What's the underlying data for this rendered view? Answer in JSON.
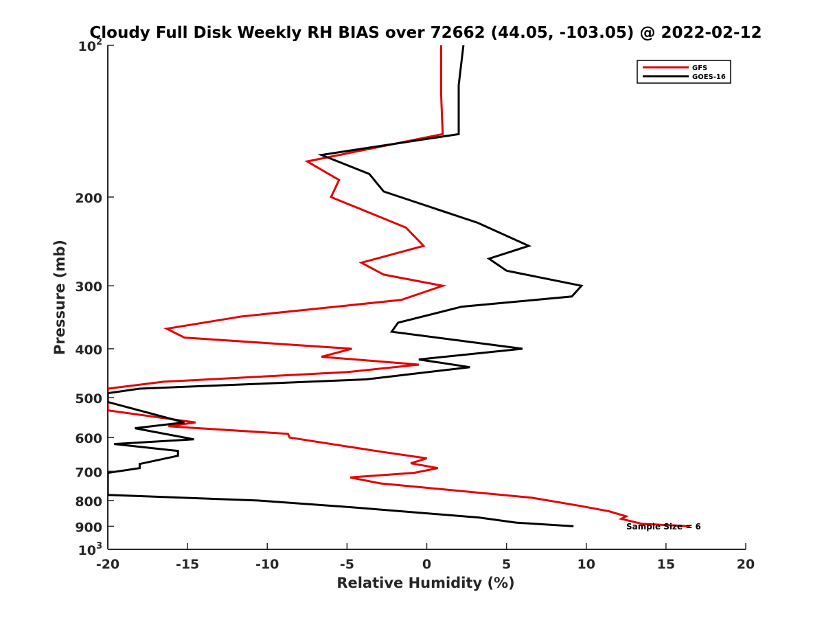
{
  "chart_data": {
    "type": "line",
    "title": "Cloudy Full Disk Weekly RH BIAS over 72662 (44.05, -103.05) @ 2022-02-12",
    "xlabel": "Relative Humidity (%)",
    "ylabel": "Pressure (mb)",
    "xlim": [
      -20,
      20
    ],
    "ylim": [
      100,
      1000
    ],
    "y_scale": "log",
    "y_reversed": true,
    "grid": false,
    "legend_position": "top-right",
    "x_ticks": [
      -20,
      -15,
      -10,
      -5,
      0,
      5,
      10,
      15,
      20
    ],
    "x_tick_labels": [
      "-20",
      "-15",
      "-10",
      "-5",
      "0",
      "5",
      "10",
      "15",
      "20"
    ],
    "y_ticks": [
      100,
      200,
      300,
      400,
      500,
      600,
      700,
      800,
      900,
      1000
    ],
    "y_tick_labels": [
      {
        "base": "10",
        "exp": "2"
      },
      {
        "base": "200",
        "exp": ""
      },
      {
        "base": "300",
        "exp": ""
      },
      {
        "base": "400",
        "exp": ""
      },
      {
        "base": "500",
        "exp": ""
      },
      {
        "base": "600",
        "exp": ""
      },
      {
        "base": "700",
        "exp": ""
      },
      {
        "base": "800",
        "exp": ""
      },
      {
        "base": "900",
        "exp": ""
      },
      {
        "base": "10",
        "exp": "3"
      }
    ],
    "annotation": "Sample Size = 6",
    "series": [
      {
        "name": "GFS",
        "color": "#e60000",
        "points": [
          [
            0.9,
            100
          ],
          [
            0.9,
            125
          ],
          [
            1.0,
            150
          ],
          [
            -7.5,
            170
          ],
          [
            -5.5,
            185
          ],
          [
            -6.0,
            200
          ],
          [
            -1.3,
            230
          ],
          [
            -0.2,
            250
          ],
          [
            -4.1,
            270
          ],
          [
            -2.7,
            285
          ],
          [
            1.0,
            300
          ],
          [
            -1.6,
            320
          ],
          [
            -11.6,
            345
          ],
          [
            -16.3,
            365
          ],
          [
            -15.2,
            380
          ],
          [
            -4.7,
            400
          ],
          [
            -6.6,
            415
          ],
          [
            -0.5,
            430
          ],
          [
            -5.0,
            445
          ],
          [
            -16.5,
            465
          ],
          [
            -20.0,
            480
          ],
          [
            -20.0,
            530
          ],
          [
            -14.5,
            560
          ],
          [
            -16.2,
            570
          ],
          [
            -8.7,
            590
          ],
          [
            -8.6,
            600
          ],
          [
            -2.9,
            640
          ],
          [
            0.0,
            660
          ],
          [
            -1.0,
            675
          ],
          [
            0.7,
            690
          ],
          [
            -0.8,
            705
          ],
          [
            -4.8,
            720
          ],
          [
            -2.9,
            740
          ],
          [
            6.6,
            790
          ],
          [
            9.6,
            820
          ],
          [
            11.4,
            840
          ],
          [
            12.5,
            860
          ],
          [
            12.2,
            870
          ],
          [
            13.5,
            890
          ],
          [
            16.5,
            900
          ]
        ]
      },
      {
        "name": "GOES-16",
        "color": "#000000",
        "points": [
          [
            2.3,
            100
          ],
          [
            2.0,
            120
          ],
          [
            2.0,
            150
          ],
          [
            -6.6,
            165
          ],
          [
            -3.6,
            180
          ],
          [
            -2.7,
            195
          ],
          [
            3.2,
            225
          ],
          [
            6.4,
            250
          ],
          [
            3.9,
            265
          ],
          [
            5.0,
            280
          ],
          [
            9.7,
            300
          ],
          [
            9.1,
            315
          ],
          [
            2.2,
            330
          ],
          [
            -1.8,
            355
          ],
          [
            -2.2,
            370
          ],
          [
            6.0,
            400
          ],
          [
            -0.5,
            420
          ],
          [
            2.7,
            435
          ],
          [
            -3.8,
            460
          ],
          [
            -18.0,
            480
          ],
          [
            -20.0,
            490
          ],
          [
            -20.0,
            510
          ],
          [
            -15.2,
            560
          ],
          [
            -18.3,
            575
          ],
          [
            -14.6,
            605
          ],
          [
            -19.6,
            618
          ],
          [
            -15.6,
            638
          ],
          [
            -15.6,
            652
          ],
          [
            -18.0,
            677
          ],
          [
            -18.0,
            690
          ],
          [
            -20.0,
            705
          ],
          [
            -20.0,
            780
          ],
          [
            -10.6,
            800
          ],
          [
            -4.7,
            825
          ],
          [
            3.3,
            865
          ],
          [
            5.6,
            885
          ],
          [
            9.2,
            900
          ]
        ]
      }
    ]
  }
}
